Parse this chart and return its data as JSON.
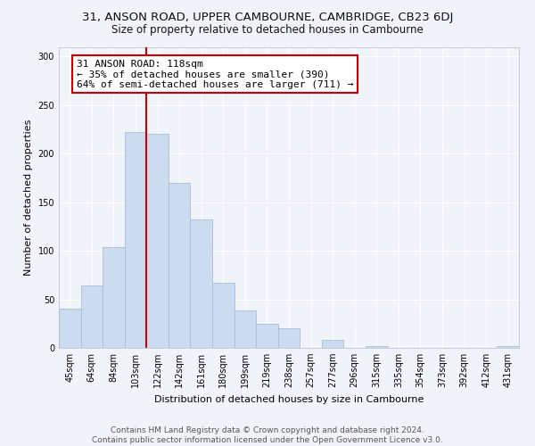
{
  "title": "31, ANSON ROAD, UPPER CAMBOURNE, CAMBRIDGE, CB23 6DJ",
  "subtitle": "Size of property relative to detached houses in Cambourne",
  "xlabel": "Distribution of detached houses by size in Cambourne",
  "ylabel": "Number of detached properties",
  "categories": [
    "45sqm",
    "64sqm",
    "84sqm",
    "103sqm",
    "122sqm",
    "142sqm",
    "161sqm",
    "180sqm",
    "199sqm",
    "219sqm",
    "238sqm",
    "257sqm",
    "277sqm",
    "296sqm",
    "315sqm",
    "335sqm",
    "354sqm",
    "373sqm",
    "392sqm",
    "412sqm",
    "431sqm"
  ],
  "values": [
    40,
    64,
    104,
    222,
    220,
    170,
    132,
    67,
    39,
    25,
    20,
    0,
    8,
    0,
    2,
    0,
    0,
    0,
    0,
    0,
    2
  ],
  "bar_color": "#ccdcf0",
  "bar_edge_color": "#aabdd8",
  "vline_color": "#cc0000",
  "vline_x_index": 4,
  "annotation_text_line1": "31 ANSON ROAD: 118sqm",
  "annotation_text_line2": "← 35% of detached houses are smaller (390)",
  "annotation_text_line3": "64% of semi-detached houses are larger (711) →",
  "annotation_box_color": "#ffffff",
  "annotation_box_edge": "#cc0000",
  "ylim": [
    0,
    310
  ],
  "yticks": [
    0,
    50,
    100,
    150,
    200,
    250,
    300
  ],
  "footer_line1": "Contains HM Land Registry data © Crown copyright and database right 2024.",
  "footer_line2": "Contains public sector information licensed under the Open Government Licence v3.0.",
  "title_fontsize": 9.5,
  "subtitle_fontsize": 8.5,
  "axis_label_fontsize": 8,
  "tick_fontsize": 7,
  "annotation_fontsize": 8,
  "footer_fontsize": 6.5,
  "bg_color": "#f0f4fa",
  "grid_color": "#ffffff"
}
